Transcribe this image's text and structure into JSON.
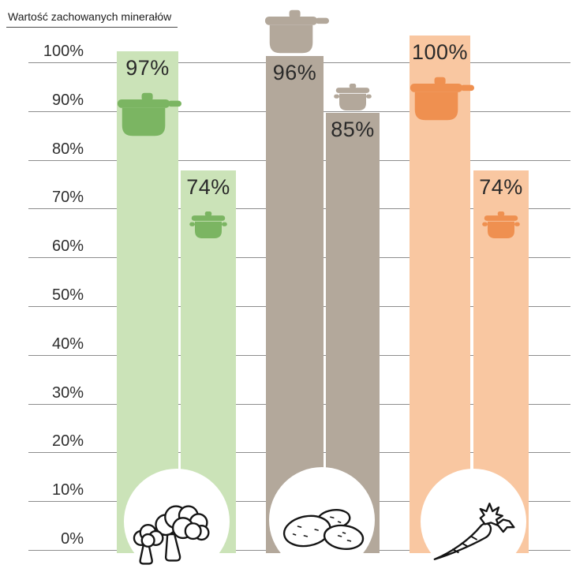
{
  "chart_data": {
    "type": "bar",
    "title": "Wartość zachowanych minerałów",
    "unit": "%",
    "ylim": [
      0,
      100
    ],
    "yticks": [
      "100%",
      "90%",
      "80%",
      "70%",
      "60%",
      "50%",
      "40%",
      "30%",
      "20%",
      "10%",
      "0%"
    ],
    "grid": true,
    "legend": "none",
    "groups": [
      {
        "category": "broccoli",
        "bar_color": "#cbe3b8",
        "icon_color": "#7bb562",
        "bars": [
          {
            "cookware": "pressure-cooker",
            "value": 97,
            "label": "97%",
            "icon": "pressure-cooker",
            "icon_position": "inside"
          },
          {
            "cookware": "pot",
            "value": 74,
            "label": "74%",
            "icon": "pot",
            "icon_position": "inside"
          }
        ]
      },
      {
        "category": "potatoes",
        "bar_color": "#b3a89b",
        "icon_color": "#b3a89b",
        "bars": [
          {
            "cookware": "pressure-cooker",
            "value": 96,
            "label": "96%",
            "icon": "pressure-cooker",
            "icon_position": "above"
          },
          {
            "cookware": "pot",
            "value": 85,
            "label": "85%",
            "icon": "pot",
            "icon_position": "above"
          }
        ]
      },
      {
        "category": "carrot",
        "bar_color": "#f9c7a1",
        "icon_color": "#ef9050",
        "bars": [
          {
            "cookware": "pressure-cooker",
            "value": 100,
            "label": "100%",
            "icon": "pressure-cooker",
            "icon_position": "inside"
          },
          {
            "cookware": "pot",
            "value": 74,
            "label": "74%",
            "icon": "pot",
            "icon_position": "inside"
          }
        ]
      }
    ]
  }
}
